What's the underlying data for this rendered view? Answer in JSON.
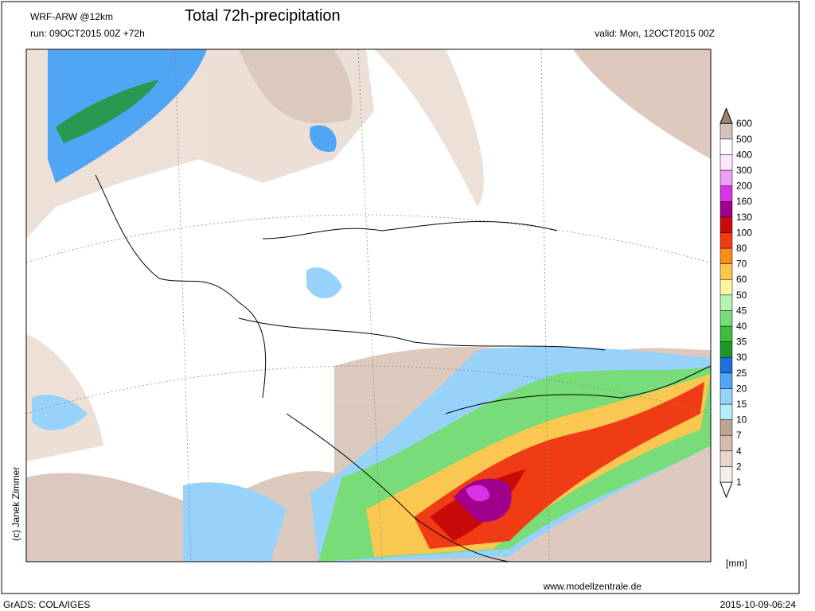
{
  "header": {
    "model": "WRF-ARW @12km",
    "title": "Total 72h-precipitation",
    "run": "run: 09OCT2015 00Z +72h",
    "valid": "valid: Mon, 12OCT2015 00Z"
  },
  "legend": {
    "levels": [
      1,
      2,
      4,
      7,
      10,
      15,
      20,
      25,
      30,
      35,
      40,
      45,
      50,
      60,
      70,
      80,
      100,
      130,
      160,
      200,
      300,
      400,
      500,
      600
    ],
    "colors": [
      "#ffffff",
      "#f6eee9",
      "#e8d8cc",
      "#d4bcae",
      "#bfa294",
      "#b4eef8",
      "#96d2fa",
      "#50a5f5",
      "#1e6edc",
      "#1e9628",
      "#3cbe3c",
      "#78dc78",
      "#b4f5b4",
      "#fff5a0",
      "#fac850",
      "#fa8c1e",
      "#f03c14",
      "#c80a0a",
      "#a0008c",
      "#dc32e6",
      "#f0a0f0",
      "#ffe6ff",
      "#ffffff",
      "#d2c3bb",
      "#a08070"
    ],
    "unit": "[mm]"
  },
  "footer": {
    "website": "www.modellzentrale.de",
    "copyright": "(c) Janek Zimmer",
    "software": "GrADS: COLA/IGES",
    "timestamp": "2015-10-09-06:24"
  }
}
